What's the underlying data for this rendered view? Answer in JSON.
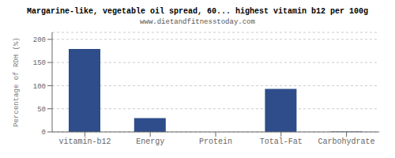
{
  "chart_data": {
    "type": "bar",
    "title": "Margarine-like, vegetable oil spread, 60... highest vitamin b12 per 100g",
    "subtitle": "www.dietandfitnesstoday.com",
    "categories": [
      "vitamin-b12",
      "Energy",
      "Protein",
      "Total-Fat",
      "Carbohydrate"
    ],
    "values": [
      179,
      30,
      0,
      93,
      1
    ],
    "color": "#2e4d8a",
    "ylabel": "Percentage of RDH (%)",
    "ylim": [
      0,
      215
    ],
    "yticks": [
      0,
      50,
      100,
      150,
      200
    ],
    "grid": true
  }
}
